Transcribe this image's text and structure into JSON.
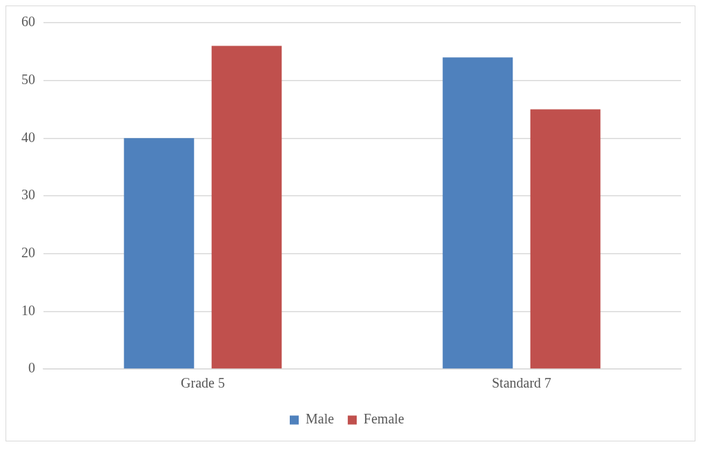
{
  "chart_data": {
    "type": "bar",
    "categories": [
      "Grade 5",
      "Standard 7"
    ],
    "series": [
      {
        "name": "Male",
        "color": "#4f81bd",
        "values": [
          40,
          54
        ]
      },
      {
        "name": "Female",
        "color": "#c0504d",
        "values": [
          56,
          45
        ]
      }
    ],
    "ylim": [
      0,
      60
    ],
    "yticks": [
      0,
      10,
      20,
      30,
      40,
      50,
      60
    ],
    "grid": "y",
    "legend": "bottom"
  }
}
